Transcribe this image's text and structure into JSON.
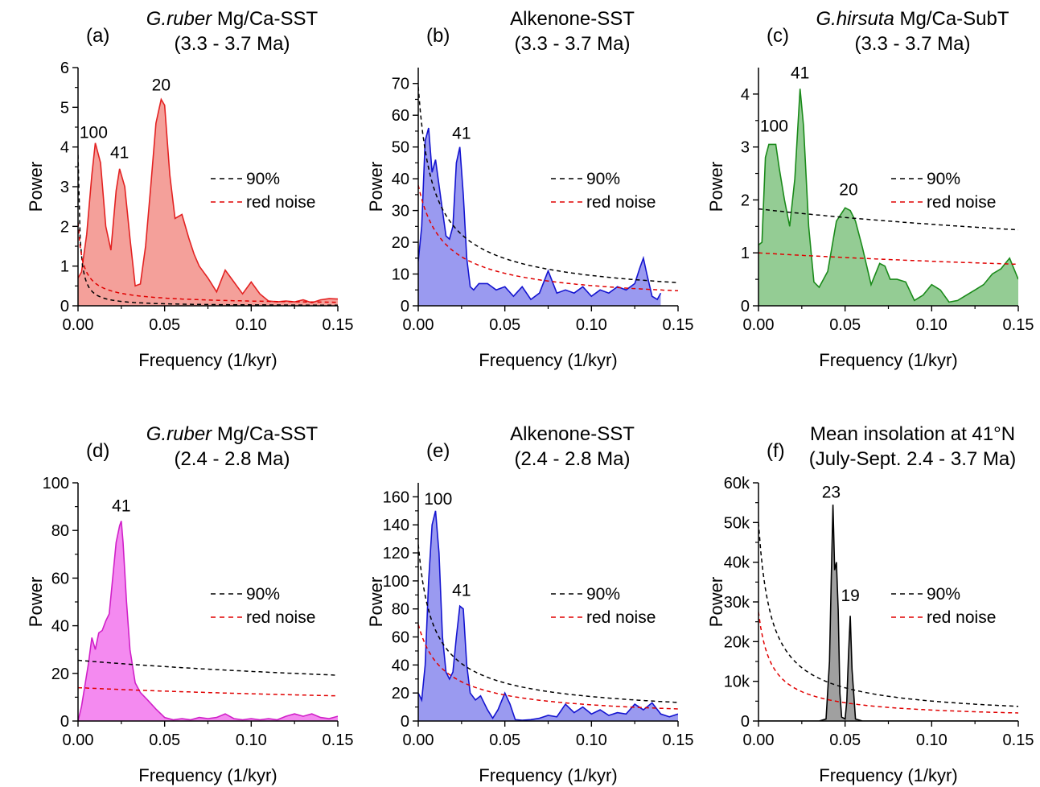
{
  "chart_data": [
    {
      "type": "area",
      "panel_label": "(a)",
      "title_italic": "G.ruber",
      "title_rest": " Mg/Ca-SST",
      "subtitle": "(3.3 - 3.7 Ma)",
      "xlabel": "Frequency (1/kyr)",
      "ylabel": "Power",
      "xlim": [
        0,
        0.15
      ],
      "ylim": [
        0,
        6
      ],
      "xticks": [
        0,
        0.05,
        0.1,
        0.15
      ],
      "xtick_labels": [
        "0.00",
        "0.05",
        "0.10",
        "0.15"
      ],
      "yticks": [
        0,
        1,
        2,
        3,
        4,
        5,
        6
      ],
      "ytick_labels": [
        "0",
        "1",
        "2",
        "3",
        "4",
        "5",
        "6"
      ],
      "fill_color": "#f4a09a",
      "line_color": "#e32222",
      "series": [
        {
          "kind": "spectrum",
          "x": [
            0,
            0.002,
            0.005,
            0.008,
            0.01,
            0.013,
            0.016,
            0.019,
            0.022,
            0.024,
            0.027,
            0.03,
            0.033,
            0.036,
            0.039,
            0.042,
            0.045,
            0.047,
            0.048,
            0.05,
            0.053,
            0.056,
            0.058,
            0.06,
            0.064,
            0.067,
            0.07,
            0.075,
            0.08,
            0.085,
            0.09,
            0.095,
            0.1,
            0.105,
            0.11,
            0.115,
            0.12,
            0.125,
            0.13,
            0.135,
            0.14,
            0.145,
            0.15
          ],
          "y": [
            0.7,
            0.85,
            1.8,
            3.3,
            4.1,
            3.6,
            2.0,
            1.4,
            2.9,
            3.45,
            3.0,
            1.7,
            0.5,
            0.55,
            1.5,
            3.0,
            4.6,
            5.0,
            5.2,
            5.05,
            3.3,
            2.2,
            2.25,
            2.3,
            1.7,
            1.3,
            1.0,
            0.7,
            0.35,
            0.9,
            0.6,
            0.3,
            0.6,
            0.3,
            0.12,
            0.1,
            0.12,
            0.1,
            0.15,
            0.08,
            0.15,
            0.18,
            0.17
          ]
        },
        {
          "kind": "ci90",
          "name": "90%",
          "color": "#000000",
          "A": 3.8,
          "B": 0.0012,
          "C": 1.15
        },
        {
          "kind": "rednoise",
          "name": "red noise",
          "color": "#e00000",
          "A": 2.1,
          "B": 0.002,
          "C": 0.73
        }
      ],
      "annotations": [
        {
          "text": "100",
          "x": 0.009,
          "y": 4.1
        },
        {
          "text": "41",
          "x": 0.024,
          "y": 3.6
        },
        {
          "text": "20",
          "x": 0.048,
          "y": 5.3
        }
      ]
    },
    {
      "type": "area",
      "panel_label": "(b)",
      "title_italic": "",
      "title_rest": "Alkenone-SST",
      "subtitle": "(3.3 - 3.7 Ma)",
      "xlabel": "Frequency (1/kyr)",
      "ylabel": "Power",
      "xlim": [
        0,
        0.15
      ],
      "ylim": [
        0,
        75
      ],
      "xticks": [
        0,
        0.05,
        0.1,
        0.15
      ],
      "xtick_labels": [
        "0.00",
        "0.05",
        "0.10",
        "0.15"
      ],
      "yticks": [
        0,
        10,
        20,
        30,
        40,
        50,
        60,
        70
      ],
      "ytick_labels": [
        "0",
        "10",
        "20",
        "30",
        "40",
        "50",
        "60",
        "70"
      ],
      "fill_color": "#9a9af0",
      "line_color": "#1414d0",
      "series": [
        {
          "kind": "spectrum",
          "x": [
            0,
            0.002,
            0.004,
            0.006,
            0.008,
            0.01,
            0.012,
            0.014,
            0.016,
            0.018,
            0.02,
            0.022,
            0.024,
            0.026,
            0.028,
            0.03,
            0.032,
            0.035,
            0.04,
            0.045,
            0.05,
            0.055,
            0.06,
            0.065,
            0.07,
            0.075,
            0.08,
            0.085,
            0.09,
            0.095,
            0.1,
            0.105,
            0.11,
            0.115,
            0.12,
            0.125,
            0.128,
            0.13,
            0.132,
            0.135,
            0.138,
            0.14
          ],
          "y": [
            14,
            25,
            52,
            56,
            42,
            46,
            38,
            30,
            22,
            21,
            25,
            45,
            50,
            35,
            15,
            6,
            5,
            7,
            7,
            5,
            6,
            3,
            6,
            2,
            4,
            11,
            4,
            5,
            4,
            6,
            3,
            5,
            4,
            6,
            5,
            7,
            12,
            15,
            10,
            3,
            2,
            4
          ]
        },
        {
          "kind": "ci90",
          "name": "90%",
          "color": "#000000",
          "A": 69,
          "B": 0.0063,
          "C": 0.7
        },
        {
          "kind": "rednoise",
          "name": "red noise",
          "color": "#e00000",
          "A": 38,
          "B": 0.012,
          "C": 0.8
        }
      ],
      "annotations": [
        {
          "text": "41",
          "x": 0.025,
          "y": 51
        }
      ]
    },
    {
      "type": "area",
      "panel_label": "(c)",
      "title_italic": "G.hirsuta",
      "title_rest": " Mg/Ca-SubT",
      "subtitle": "(3.3 - 3.7 Ma)",
      "xlabel": "Frequency (1/kyr)",
      "ylabel": "Power",
      "xlim": [
        0,
        0.15
      ],
      "ylim": [
        0,
        4.5
      ],
      "xticks": [
        0,
        0.05,
        0.1,
        0.15
      ],
      "xtick_labels": [
        "0.00",
        "0.05",
        "0.10",
        "0.15"
      ],
      "yticks": [
        0,
        1,
        2,
        3,
        4
      ],
      "ytick_labels": [
        "0",
        "1",
        "2",
        "3",
        "4"
      ],
      "fill_color": "#94cc94",
      "line_color": "#1a8a1a",
      "series": [
        {
          "kind": "spectrum",
          "x": [
            0,
            0.002,
            0.004,
            0.006,
            0.01,
            0.012,
            0.015,
            0.018,
            0.021,
            0.024,
            0.026,
            0.029,
            0.032,
            0.035,
            0.04,
            0.045,
            0.05,
            0.053,
            0.056,
            0.06,
            0.065,
            0.07,
            0.073,
            0.076,
            0.08,
            0.085,
            0.09,
            0.095,
            0.1,
            0.105,
            0.11,
            0.115,
            0.12,
            0.125,
            0.13,
            0.135,
            0.14,
            0.145,
            0.15
          ],
          "y": [
            1.15,
            1.2,
            2.8,
            3.05,
            3.05,
            2.6,
            2.0,
            1.5,
            2.4,
            4.1,
            3.4,
            1.5,
            0.45,
            0.35,
            0.65,
            1.6,
            1.85,
            1.8,
            1.6,
            1.1,
            0.4,
            0.8,
            0.75,
            0.5,
            0.5,
            0.45,
            0.1,
            0.2,
            0.4,
            0.3,
            0.07,
            0.1,
            0.2,
            0.3,
            0.4,
            0.6,
            0.7,
            0.9,
            0.5
          ]
        },
        {
          "kind": "ci90",
          "name": "90%",
          "color": "#000000",
          "A": 1.83,
          "B": 0.3,
          "C": 0.6
        },
        {
          "kind": "rednoise",
          "name": "red noise",
          "color": "#e00000",
          "A": 1.0,
          "B": 0.3,
          "C": 0.6
        }
      ],
      "annotations": [
        {
          "text": "100",
          "x": 0.009,
          "y": 3.2
        },
        {
          "text": "41",
          "x": 0.024,
          "y": 4.2
        },
        {
          "text": "20",
          "x": 0.052,
          "y": 2.0
        }
      ]
    },
    {
      "type": "area",
      "panel_label": "(d)",
      "title_italic": "G.ruber",
      "title_rest": " Mg/Ca-SST",
      "subtitle": "(2.4 - 2.8 Ma)",
      "xlabel": "Frequency (1/kyr)",
      "ylabel": "Power",
      "xlim": [
        0,
        0.15
      ],
      "ylim": [
        0,
        100
      ],
      "xticks": [
        0,
        0.05,
        0.1,
        0.15
      ],
      "xtick_labels": [
        "0.00",
        "0.05",
        "0.10",
        "0.15"
      ],
      "yticks": [
        0,
        20,
        40,
        60,
        80,
        100
      ],
      "ytick_labels": [
        "0",
        "20",
        "40",
        "60",
        "80",
        "100"
      ],
      "fill_color": "#f48af0",
      "line_color": "#d020c8",
      "series": [
        {
          "kind": "spectrum",
          "x": [
            0,
            0.002,
            0.004,
            0.006,
            0.008,
            0.01,
            0.012,
            0.014,
            0.016,
            0.018,
            0.02,
            0.022,
            0.024,
            0.025,
            0.026,
            0.028,
            0.03,
            0.033,
            0.036,
            0.04,
            0.045,
            0.05,
            0.055,
            0.06,
            0.065,
            0.07,
            0.075,
            0.08,
            0.085,
            0.09,
            0.095,
            0.1,
            0.105,
            0.11,
            0.115,
            0.12,
            0.125,
            0.13,
            0.135,
            0.14,
            0.145,
            0.15
          ],
          "y": [
            0,
            6,
            15,
            24,
            35,
            30,
            37,
            38,
            42,
            45,
            60,
            75,
            82,
            84,
            75,
            50,
            30,
            16,
            12,
            9,
            5,
            1.5,
            0.5,
            1,
            0.5,
            1.5,
            1,
            1.5,
            3,
            1,
            0.5,
            1,
            0.5,
            1,
            0.5,
            2,
            3,
            2,
            3,
            1.5,
            1,
            2
          ]
        },
        {
          "kind": "ci90",
          "name": "90%",
          "color": "#000000",
          "A": 25.5,
          "B": 0.25,
          "C": 0.6
        },
        {
          "kind": "rednoise",
          "name": "red noise",
          "color": "#e00000",
          "A": 14,
          "B": 0.25,
          "C": 0.6
        }
      ],
      "annotations": [
        {
          "text": "41",
          "x": 0.025,
          "y": 86
        }
      ]
    },
    {
      "type": "area",
      "panel_label": "(e)",
      "title_italic": "",
      "title_rest": "Alkenone-SST",
      "subtitle": "(2.4 - 2.8 Ma)",
      "xlabel": "Frequency (1/kyr)",
      "ylabel": "Power",
      "xlim": [
        0,
        0.15
      ],
      "ylim": [
        0,
        170
      ],
      "xticks": [
        0,
        0.05,
        0.1,
        0.15
      ],
      "xtick_labels": [
        "0.00",
        "0.05",
        "0.10",
        "0.15"
      ],
      "yticks": [
        0,
        20,
        40,
        60,
        80,
        100,
        120,
        140,
        160
      ],
      "ytick_labels": [
        "0",
        "20",
        "40",
        "60",
        "80",
        "100",
        "120",
        "140",
        "160"
      ],
      "fill_color": "#9a9af0",
      "line_color": "#1414d0",
      "series": [
        {
          "kind": "spectrum",
          "x": [
            0,
            0.002,
            0.004,
            0.006,
            0.008,
            0.01,
            0.012,
            0.014,
            0.016,
            0.018,
            0.02,
            0.022,
            0.024,
            0.026,
            0.028,
            0.03,
            0.033,
            0.036,
            0.04,
            0.043,
            0.046,
            0.05,
            0.053,
            0.056,
            0.06,
            0.065,
            0.07,
            0.075,
            0.08,
            0.085,
            0.09,
            0.095,
            0.1,
            0.105,
            0.11,
            0.115,
            0.12,
            0.125,
            0.13,
            0.135,
            0.14,
            0.145,
            0.15
          ],
          "y": [
            20,
            15,
            40,
            100,
            140,
            150,
            120,
            60,
            35,
            30,
            35,
            60,
            82,
            80,
            40,
            20,
            15,
            18,
            8,
            2,
            8,
            20,
            12,
            1,
            0.5,
            1,
            2,
            4,
            3,
            12,
            6,
            10,
            5,
            8,
            4,
            6,
            5,
            12,
            8,
            13,
            5,
            3,
            5
          ]
        },
        {
          "kind": "ci90",
          "name": "90%",
          "color": "#000000",
          "A": 126,
          "B": 0.0063,
          "C": 0.7
        },
        {
          "kind": "rednoise",
          "name": "red noise",
          "color": "#e00000",
          "A": 69,
          "B": 0.012,
          "C": 0.8
        }
      ],
      "annotations": [
        {
          "text": "100",
          "x": 0.0115,
          "y": 151
        },
        {
          "text": "41",
          "x": 0.025,
          "y": 86
        }
      ]
    },
    {
      "type": "area",
      "panel_label": "(f)",
      "title_italic": "",
      "title_rest": "Mean insolation at 41°N",
      "subtitle": "(July-Sept. 2.4 - 3.7 Ma)",
      "xlabel": "Frequency (1/kyr)",
      "ylabel": "Power",
      "xlim": [
        0,
        0.15
      ],
      "ylim": [
        0,
        60000
      ],
      "xticks": [
        0,
        0.05,
        0.1,
        0.15
      ],
      "xtick_labels": [
        "0.00",
        "0.05",
        "0.10",
        "0.15"
      ],
      "yticks": [
        0,
        10000,
        20000,
        30000,
        40000,
        50000,
        60000
      ],
      "ytick_labels": [
        "0",
        "10k",
        "20k",
        "30k",
        "40k",
        "50k",
        "60k"
      ],
      "fill_color": "#a0a0a0",
      "line_color": "#000000",
      "series": [
        {
          "kind": "spectrum",
          "x": [
            0,
            0.01,
            0.02,
            0.025,
            0.03,
            0.035,
            0.039,
            0.041,
            0.042,
            0.043,
            0.044,
            0.045,
            0.046,
            0.047,
            0.048,
            0.05,
            0.051,
            0.052,
            0.053,
            0.054,
            0.056,
            0.06,
            0.07,
            0.08,
            0.09,
            0.1,
            0.11,
            0.12,
            0.13,
            0.14,
            0.15
          ],
          "y": [
            0,
            0,
            0,
            0,
            0,
            0,
            500,
            15000,
            35000,
            54500,
            38000,
            40000,
            28000,
            7000,
            1000,
            500,
            5000,
            17000,
            26500,
            13000,
            500,
            0,
            0,
            0,
            0,
            0,
            0,
            0,
            0,
            0,
            0
          ]
        },
        {
          "kind": "ci90",
          "name": "90%",
          "color": "#000000",
          "A": 50000,
          "B": 0.006,
          "C": 0.8
        },
        {
          "kind": "rednoise",
          "name": "red noise",
          "color": "#e00000",
          "A": 27500,
          "B": 0.006,
          "C": 0.8
        }
      ],
      "annotations": [
        {
          "text": "23",
          "x": 0.042,
          "y": 55000
        },
        {
          "text": "19",
          "x": 0.053,
          "y": 29000
        }
      ]
    }
  ]
}
